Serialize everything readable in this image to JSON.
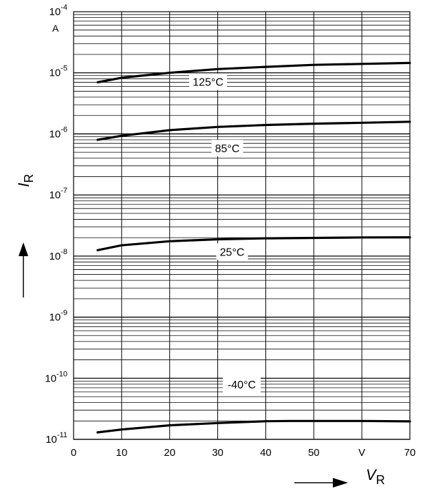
{
  "chart_data": {
    "type": "line",
    "x_axis": {
      "min": 0,
      "max": 70,
      "tick_labels": [
        "0",
        "10",
        "20",
        "30",
        "40",
        "50",
        "V",
        "70"
      ],
      "tick_values": [
        0,
        10,
        20,
        30,
        40,
        50,
        60,
        70
      ],
      "label_symbol": "V",
      "label_subscript": "R"
    },
    "y_axis": {
      "scale": "log",
      "min": 1e-11,
      "max": 0.0001,
      "unit": "A",
      "tick_labels": [
        {
          "base": "10",
          "exp": "-11",
          "value": 1e-11
        },
        {
          "base": "10",
          "exp": "-10",
          "value": 1e-10
        },
        {
          "base": "10",
          "exp": "-9",
          "value": 1e-09
        },
        {
          "base": "10",
          "exp": "-8",
          "value": 1e-08
        },
        {
          "base": "10",
          "exp": "-7",
          "value": 1e-07
        },
        {
          "base": "10",
          "exp": "-6",
          "value": 1e-06
        },
        {
          "base": "10",
          "exp": "-5",
          "value": 1e-05
        },
        {
          "base": "10",
          "exp": "-4",
          "value": 0.0001
        }
      ],
      "label_symbol": "I",
      "label_subscript": "R"
    },
    "grid": true,
    "series": [
      {
        "name": "125°C",
        "x": [
          5,
          10,
          20,
          30,
          40,
          50,
          60,
          70
        ],
        "y": [
          7e-06,
          8.3e-06,
          1e-05,
          1.15e-05,
          1.25e-05,
          1.35e-05,
          1.4e-05,
          1.45e-05
        ]
      },
      {
        "name": "85°C",
        "x": [
          5,
          10,
          20,
          30,
          40,
          50,
          60,
          70
        ],
        "y": [
          8e-07,
          9.3e-07,
          1.15e-06,
          1.3e-06,
          1.4e-06,
          1.47e-06,
          1.52e-06,
          1.58e-06
        ]
      },
      {
        "name": "25°C",
        "x": [
          5,
          10,
          20,
          30,
          40,
          50,
          60,
          70
        ],
        "y": [
          1.25e-08,
          1.5e-08,
          1.75e-08,
          1.88e-08,
          1.95e-08,
          1.98e-08,
          2.02e-08,
          2.03e-08
        ]
      },
      {
        "name": "-40°C",
        "x": [
          5,
          10,
          20,
          30,
          40,
          45,
          50,
          60,
          70
        ],
        "y": [
          1.3e-11,
          1.45e-11,
          1.7e-11,
          1.85e-11,
          1.98e-11,
          2e-11,
          2e-11,
          2e-11,
          1.97e-11
        ]
      }
    ]
  }
}
